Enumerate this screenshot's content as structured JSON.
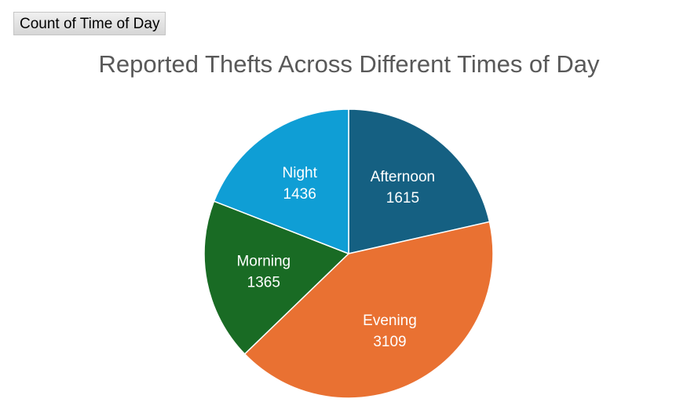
{
  "pivot_field_button": "Count of Time of Day",
  "chart_data": {
    "type": "pie",
    "title": "Reported Thefts Across Different Times of Day",
    "categories": [
      "Afternoon",
      "Evening",
      "Morning",
      "Night"
    ],
    "values": [
      1615,
      3109,
      1365,
      1436
    ],
    "colors": [
      "#156082",
      "#e97132",
      "#196b24",
      "#0f9ed5"
    ],
    "legend": "none",
    "data_labels": "category and value"
  }
}
